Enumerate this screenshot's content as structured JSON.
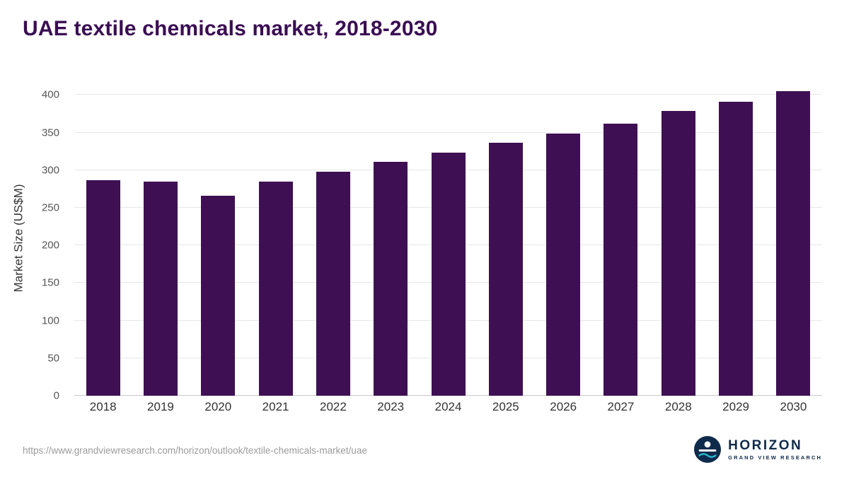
{
  "title": "UAE textile chemicals market, 2018-2030",
  "chart_data": {
    "type": "bar",
    "categories": [
      "2018",
      "2019",
      "2020",
      "2021",
      "2022",
      "2023",
      "2024",
      "2025",
      "2026",
      "2027",
      "2028",
      "2029",
      "2030"
    ],
    "values": [
      287,
      285,
      266,
      285,
      298,
      311,
      323,
      336,
      349,
      362,
      379,
      391,
      405
    ],
    "title": "UAE textile chemicals market, 2018-2030",
    "xlabel": "",
    "ylabel": "Market Size (US$M)",
    "yticks": [
      0,
      50,
      100,
      150,
      200,
      250,
      300,
      350,
      400
    ],
    "ylim": [
      0,
      420
    ],
    "grid": "horizontal",
    "legend": "none"
  },
  "colors": {
    "bar": "#3e1053",
    "title": "#3a0d53",
    "logo_navy": "#0f2b4c",
    "logo_teal": "#2ab5c8"
  },
  "footer": {
    "url": "https://www.grandviewresearch.com/horizon/outlook/textile-chemicals-market/uae"
  },
  "logo": {
    "name": "HORIZON",
    "subtitle": "GRAND VIEW RESEARCH"
  }
}
